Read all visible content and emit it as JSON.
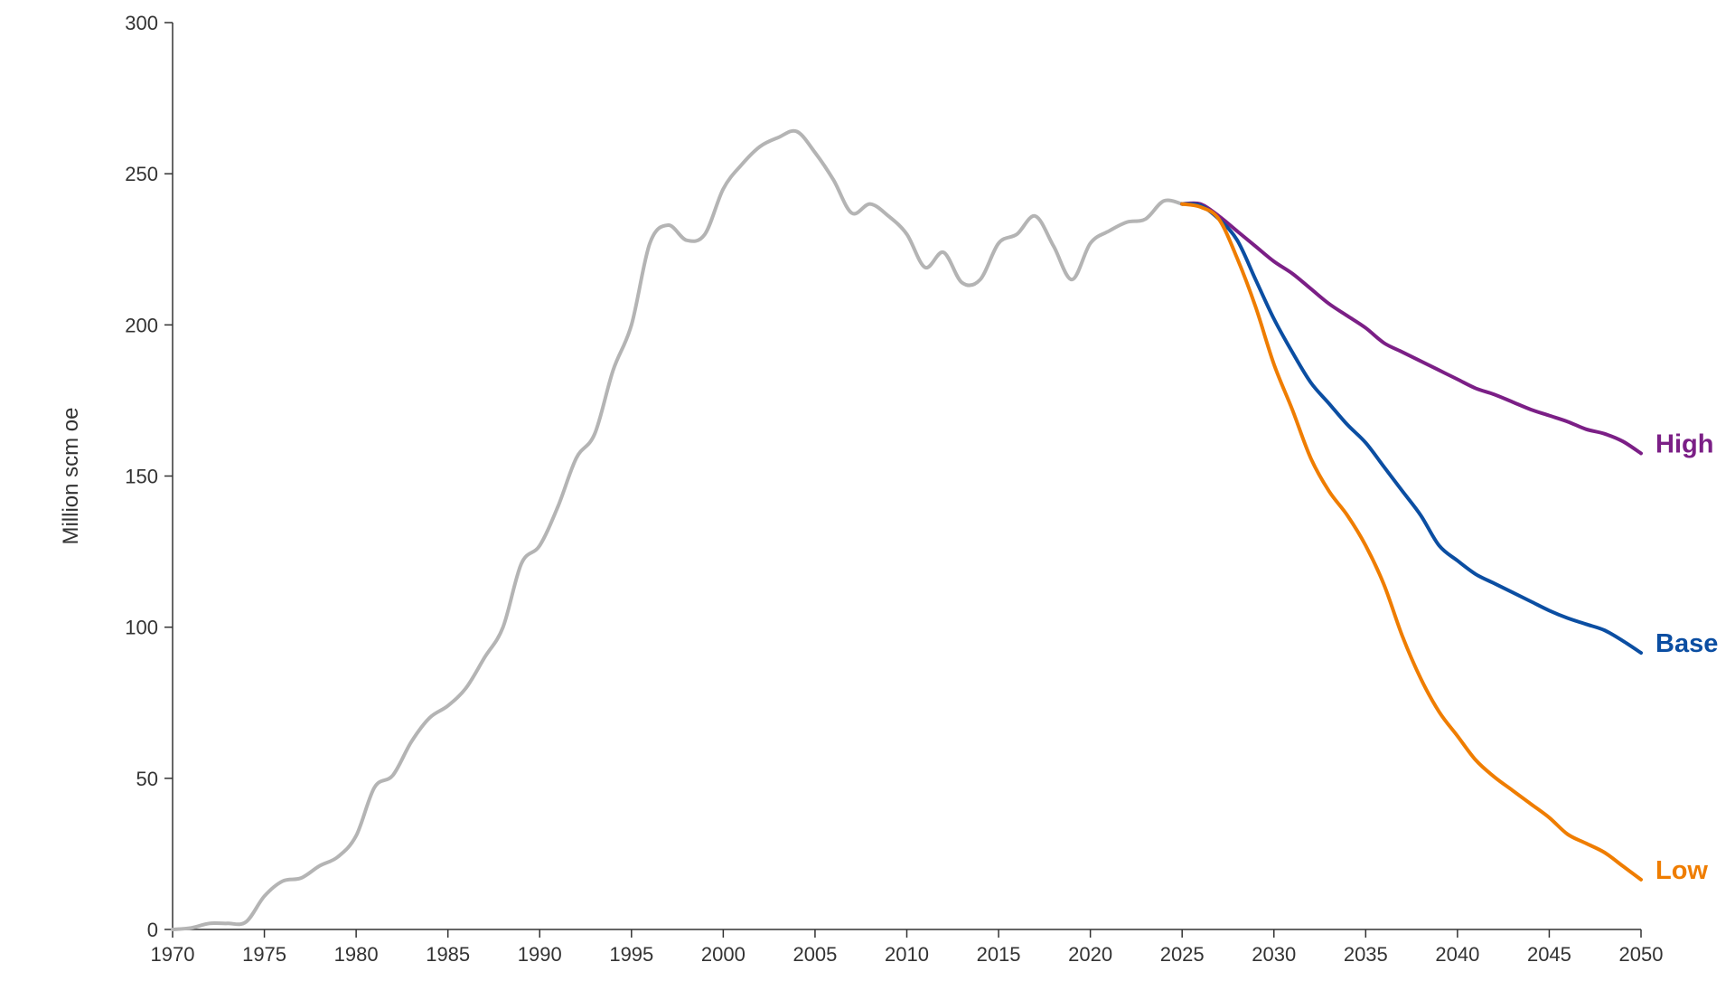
{
  "chart_data": {
    "type": "line",
    "title": "",
    "xlabel": "",
    "ylabel": "Million scm oe",
    "xlim": [
      1970,
      2050
    ],
    "ylim": [
      0,
      300
    ],
    "xticks": [
      1970,
      1975,
      1980,
      1985,
      1990,
      1995,
      2000,
      2005,
      2010,
      2015,
      2020,
      2025,
      2030,
      2035,
      2040,
      2045,
      2050
    ],
    "yticks": [
      0,
      50,
      100,
      150,
      200,
      250,
      300
    ],
    "grid": false,
    "legend": "none",
    "series": [
      {
        "key": "history",
        "color": "#b4b4b4",
        "x": [
          1970,
          1971,
          1972,
          1973,
          1974,
          1975,
          1976,
          1977,
          1978,
          1979,
          1980,
          1981,
          1982,
          1983,
          1984,
          1985,
          1986,
          1987,
          1988,
          1989,
          1990,
          1991,
          1992,
          1993,
          1994,
          1995,
          1996,
          1997,
          1998,
          1999,
          2000,
          2001,
          2002,
          2003,
          2004,
          2005,
          2006,
          2007,
          2008,
          2009,
          2010,
          2011,
          2012,
          2013,
          2014,
          2015,
          2016,
          2017,
          2018,
          2019,
          2020,
          2021,
          2022,
          2023,
          2024,
          2025
        ],
        "y": [
          0,
          0.5,
          2,
          2,
          2.5,
          11,
          16,
          17,
          21,
          24,
          31,
          47,
          51,
          62,
          70,
          74,
          80,
          90,
          100,
          121,
          127,
          140,
          156,
          164,
          185,
          200,
          227,
          233,
          228,
          230,
          245,
          253,
          259,
          262,
          264,
          257,
          248,
          237,
          240,
          236,
          230,
          219,
          224,
          214,
          215,
          227,
          230,
          236,
          226,
          215,
          227,
          231,
          234,
          235,
          241,
          240
        ]
      },
      {
        "name": "High",
        "color": "#7b1f86",
        "x": [
          2025,
          2026,
          2027,
          2028,
          2029,
          2030,
          2031,
          2032,
          2033,
          2034,
          2035,
          2036,
          2037,
          2038,
          2039,
          2040,
          2041,
          2042,
          2043,
          2044,
          2045,
          2046,
          2047,
          2048,
          2049,
          2050
        ],
        "y": [
          240,
          240,
          236,
          231,
          226,
          221,
          217,
          212,
          207,
          203,
          199,
          194,
          191,
          188,
          185,
          182,
          179,
          177,
          174.5,
          172,
          170,
          168,
          165.5,
          164,
          161.5,
          157.5
        ]
      },
      {
        "name": "Base",
        "color": "#0b4ea2",
        "x": [
          2025,
          2026,
          2027,
          2028,
          2029,
          2030,
          2031,
          2032,
          2033,
          2034,
          2035,
          2036,
          2037,
          2038,
          2039,
          2040,
          2041,
          2042,
          2043,
          2044,
          2045,
          2046,
          2047,
          2048,
          2049,
          2050
        ],
        "y": [
          240,
          239.5,
          235,
          228,
          215,
          202,
          191,
          181,
          174,
          167,
          161,
          153,
          145,
          137,
          127,
          122,
          117.5,
          114.5,
          111.5,
          108.5,
          105.5,
          103,
          101,
          99,
          95.5,
          91.5
        ]
      },
      {
        "name": "Low",
        "color": "#ef7d00",
        "x": [
          2025,
          2026,
          2027,
          2028,
          2029,
          2030,
          2031,
          2032,
          2033,
          2034,
          2035,
          2036,
          2037,
          2038,
          2039,
          2040,
          2041,
          2042,
          2043,
          2044,
          2045,
          2046,
          2047,
          2048,
          2049,
          2050
        ],
        "y": [
          240,
          239,
          235,
          222,
          206,
          187,
          172,
          156,
          145,
          137,
          127,
          114,
          97,
          83,
          72,
          64,
          56,
          50.5,
          46,
          41.5,
          37,
          31.5,
          28.5,
          25.5,
          21,
          16.5
        ]
      }
    ]
  }
}
